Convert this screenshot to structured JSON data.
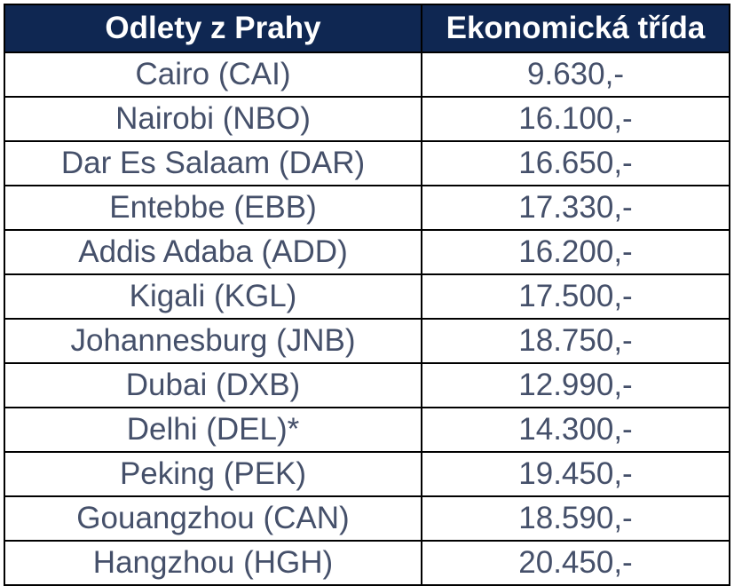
{
  "table": {
    "headers": [
      "Odlety z Prahy",
      "Ekonomická třída"
    ],
    "rows": [
      [
        "Cairo (CAI)",
        "9.630,-"
      ],
      [
        "Nairobi (NBO)",
        "16.100,-"
      ],
      [
        "Dar Es Salaam (DAR)",
        "16.650,-"
      ],
      [
        "Entebbe (EBB)",
        "17.330,-"
      ],
      [
        "Addis Adaba (ADD)",
        "16.200,-"
      ],
      [
        "Kigali (KGL)",
        "17.500,-"
      ],
      [
        "Johannesburg (JNB)",
        "18.750,-"
      ],
      [
        "Dubai (DXB)",
        "12.990,-"
      ],
      [
        "Delhi (DEL)*",
        "14.300,-"
      ],
      [
        "Peking (PEK)",
        "19.450,-"
      ],
      [
        "Gouangzhou (CAN)",
        "18.590,-"
      ],
      [
        "Hangzhou (HGH)",
        "20.450,-"
      ]
    ]
  },
  "colors": {
    "header_background": "#0f2752",
    "header_text": "#ffffff",
    "cell_text": "#45506a",
    "border": "#000000"
  }
}
